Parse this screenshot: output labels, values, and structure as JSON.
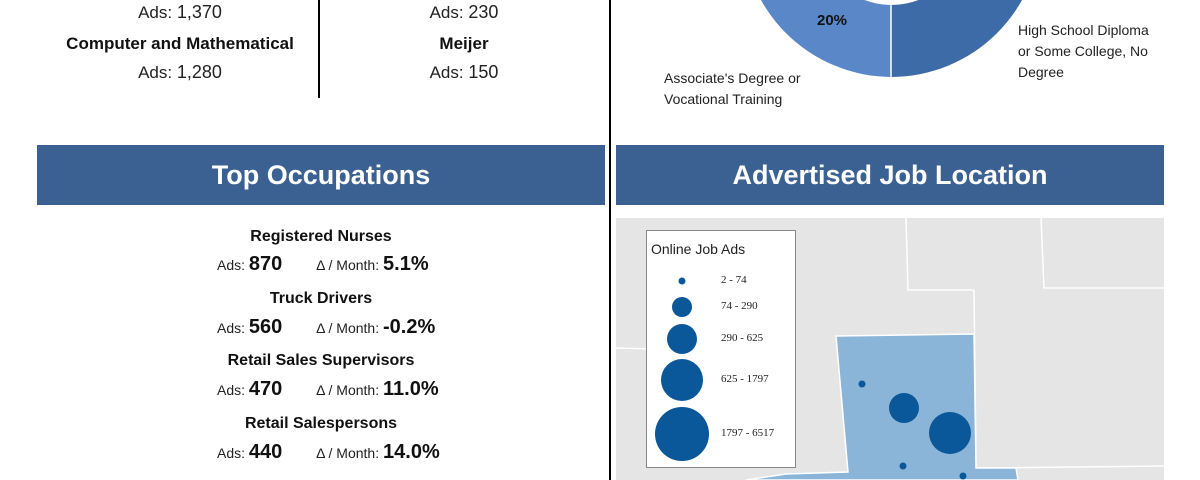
{
  "top_categories": {
    "left": [
      {
        "name": "",
        "ads_label": "Ads:",
        "ads_value": "1,370"
      },
      {
        "name": "Computer and Mathematical",
        "ads_label": "Ads:",
        "ads_value": "1,280"
      }
    ],
    "right": [
      {
        "name": "",
        "ads_label": "Ads:",
        "ads_value": "230"
      },
      {
        "name": "Meijer",
        "ads_label": "Ads:",
        "ads_value": "150"
      }
    ]
  },
  "education": {
    "slice_percent_label": "20%",
    "labels": {
      "associate": "Associate's Degree or Vocational Training",
      "high_school": "High School Diploma or Some College, No Degree"
    },
    "colors": {
      "left_slice": "#5a87c8",
      "right_slice": "#3d6ba8",
      "center": "#ffffff"
    }
  },
  "occupations": {
    "title": "Top Occupations",
    "items": [
      {
        "name": "Registered Nurses",
        "ads_label": "Ads:",
        "ads": "870",
        "delta_label": "Δ / Month:",
        "delta": "5.1%"
      },
      {
        "name": "Truck Drivers",
        "ads_label": "Ads:",
        "ads": "560",
        "delta_label": "Δ / Month:",
        "delta": "-0.2%"
      },
      {
        "name": "Retail Sales Supervisors",
        "ads_label": "Ads:",
        "ads": "470",
        "delta_label": "Δ / Month:",
        "delta": "11.0%"
      },
      {
        "name": "Retail Salespersons",
        "ads_label": "Ads:",
        "ads": "440",
        "delta_label": "Δ / Month:",
        "delta": "14.0%"
      }
    ]
  },
  "location": {
    "title": "Advertised Job Location",
    "legend": {
      "title": "Online Job Ads",
      "ranges": [
        "2 - 74",
        "74 - 290",
        "290 - 625",
        "625 - 1797",
        "1797 - 6517"
      ]
    },
    "colors": {
      "dot": "#0a5899",
      "region": "#8ab4d8",
      "land": "#e5e5e5",
      "border": "#ffffff"
    }
  }
}
